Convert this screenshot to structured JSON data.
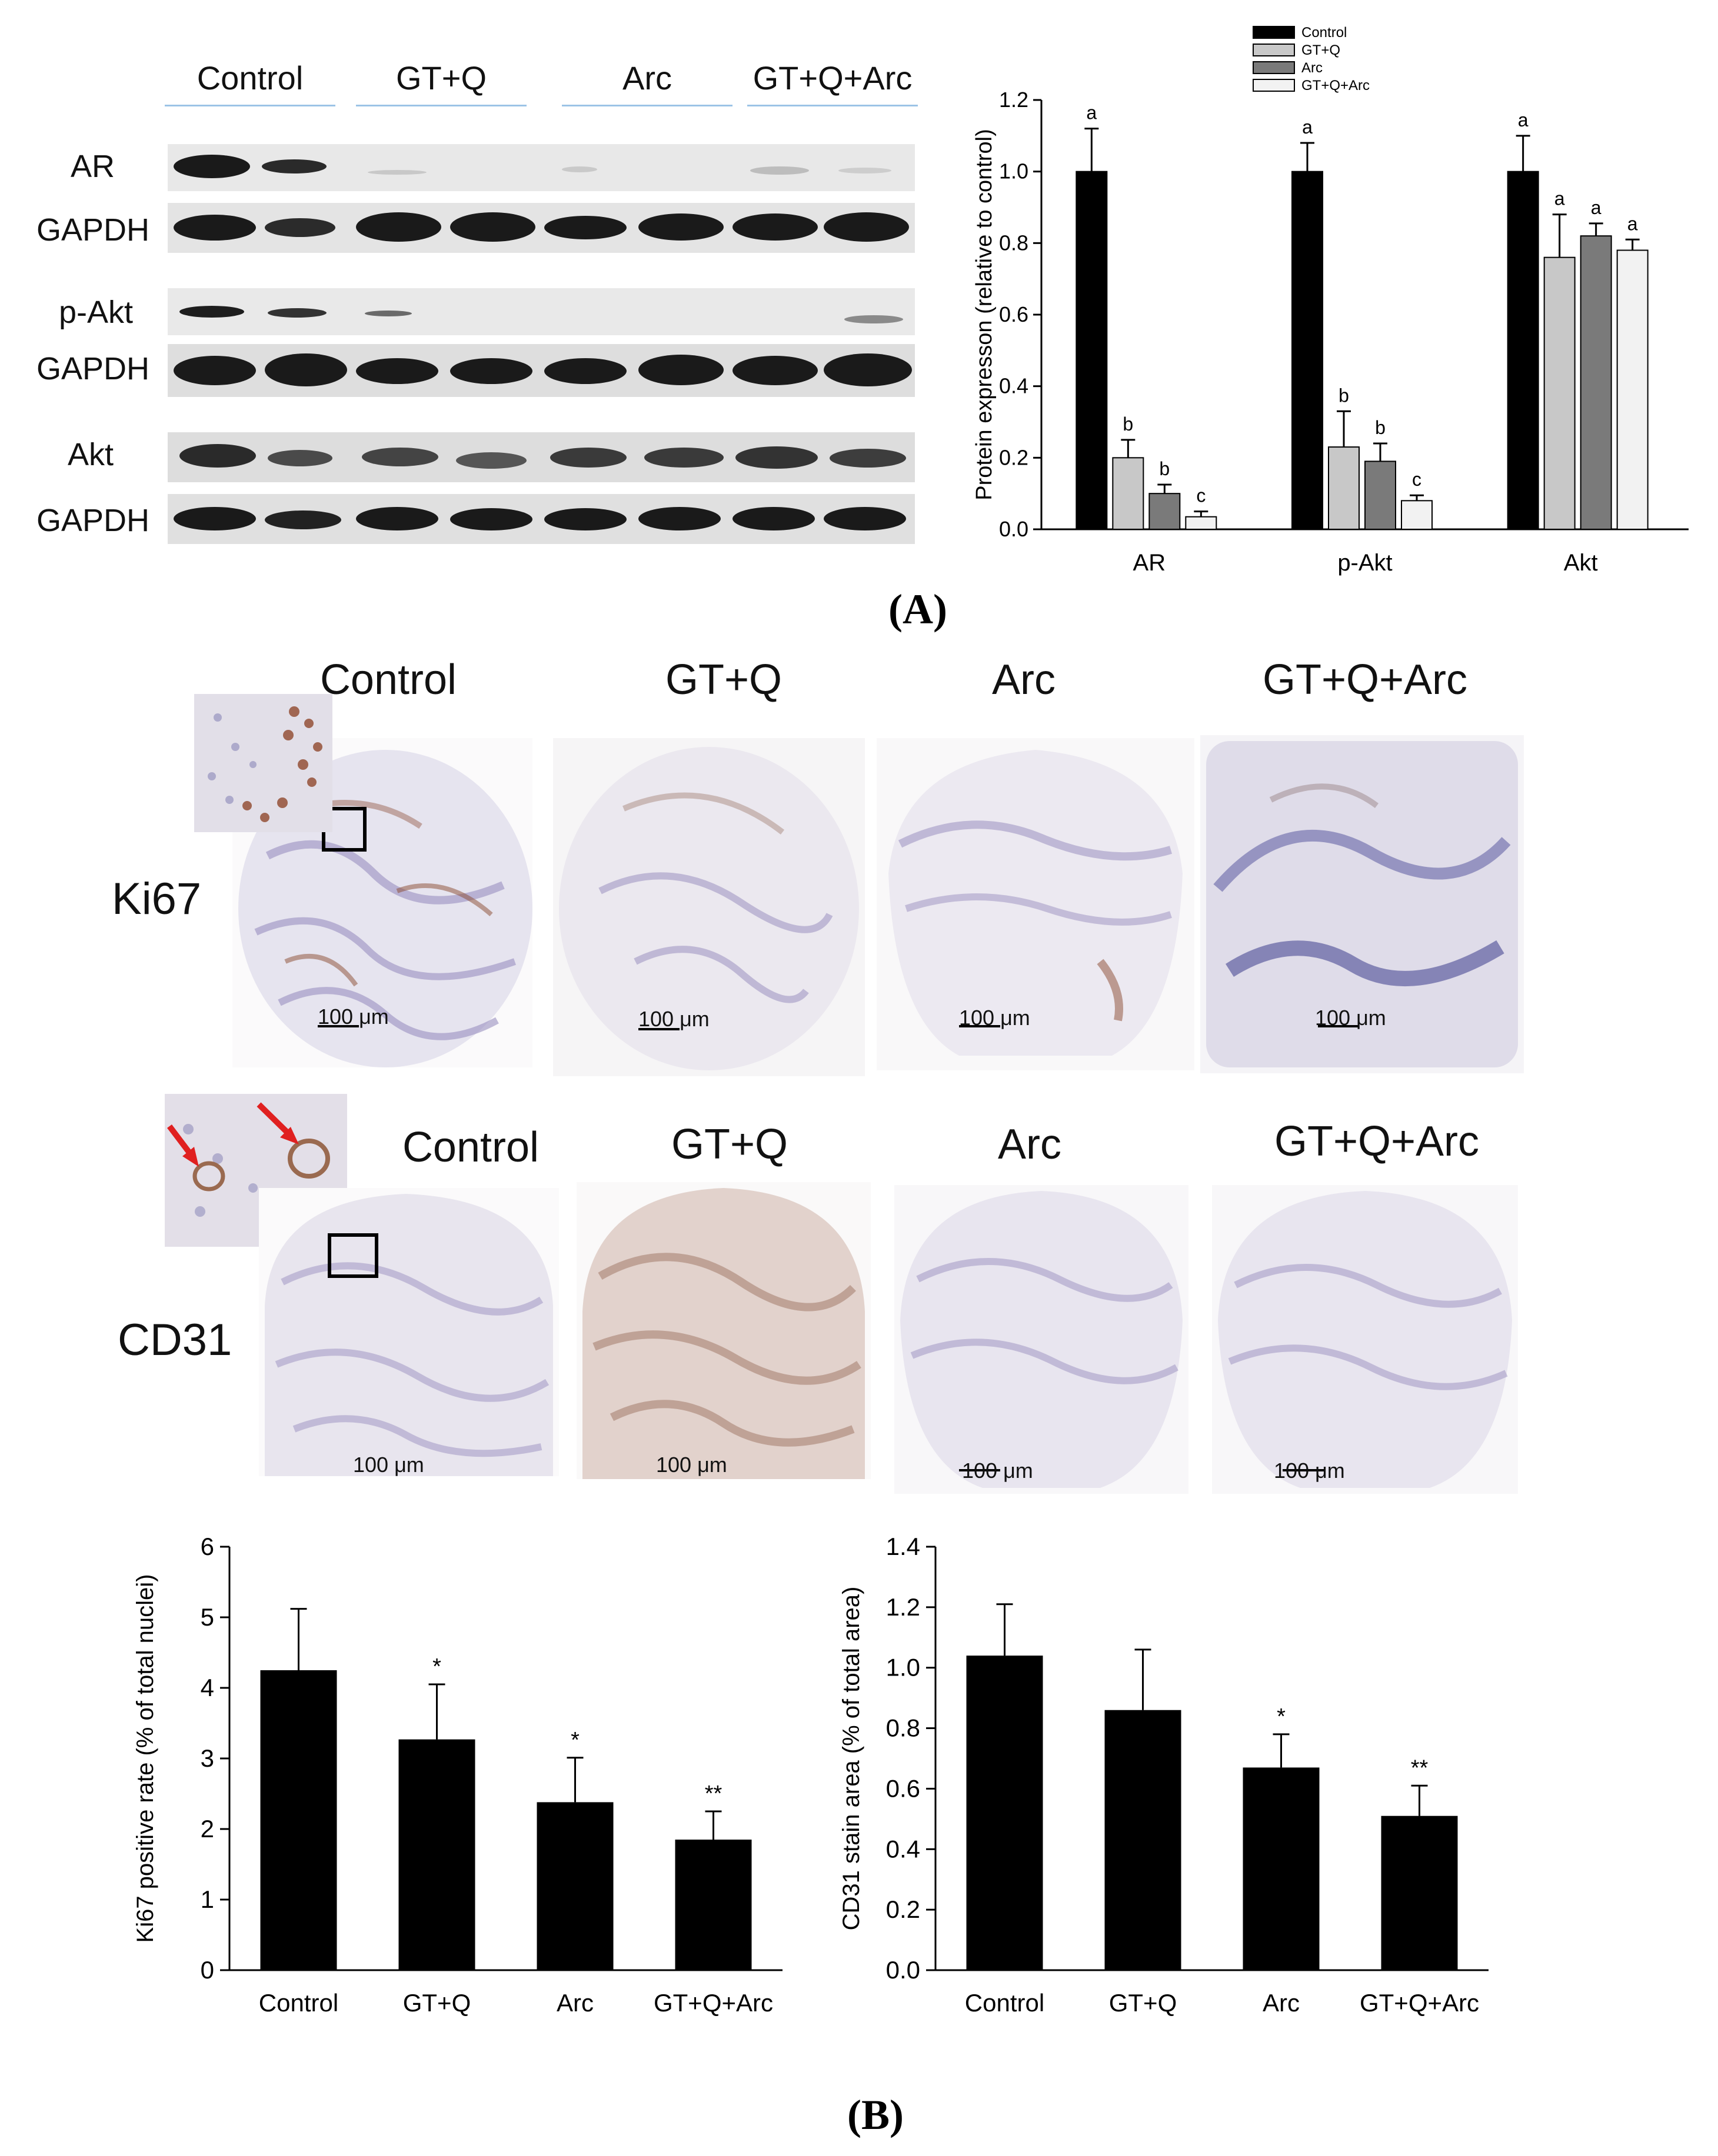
{
  "panel_a": {
    "letter": "(A)",
    "blot": {
      "groups": [
        "Control",
        "GT+Q",
        "Arc",
        "GT+Q+Arc"
      ],
      "rows": [
        "AR",
        "GAPDH",
        "p-Akt",
        "GAPDH",
        "Akt",
        "GAPDH"
      ]
    }
  },
  "panel_b": {
    "letter": "(B)",
    "ihc": {
      "columns": [
        "Control",
        "GT+Q",
        "Arc",
        "GT+Q+Arc"
      ],
      "row_ki67": "Ki67",
      "row_cd31": "CD31",
      "scale_bar": "100 μm"
    }
  },
  "colors": {
    "control": "#000000",
    "gtq": "#c8c8c8",
    "arc": "#7a7a7a",
    "gtqarc": "#f2f2f2",
    "accent_line": "#9cc3e6",
    "arrow": "#e02020"
  },
  "chart_data": [
    {
      "type": "bar",
      "categories": [
        "AR",
        "p-Akt",
        "Akt"
      ],
      "series": [
        {
          "name": "Control",
          "values": [
            1.0,
            1.0,
            1.0
          ],
          "errors": [
            0.12,
            0.08,
            0.1
          ],
          "letters": [
            "a",
            "a",
            "a"
          ]
        },
        {
          "name": "GT+Q",
          "values": [
            0.2,
            0.23,
            0.76
          ],
          "errors": [
            0.05,
            0.1,
            0.12
          ],
          "letters": [
            "b",
            "b",
            "a"
          ]
        },
        {
          "name": "Arc",
          "values": [
            0.1,
            0.19,
            0.82
          ],
          "errors": [
            0.025,
            0.05,
            0.035
          ],
          "letters": [
            "b",
            "b",
            "a"
          ]
        },
        {
          "name": "GT+Q+Arc",
          "values": [
            0.035,
            0.08,
            0.78
          ],
          "errors": [
            0.015,
            0.015,
            0.03
          ],
          "letters": [
            "c",
            "c",
            "a"
          ]
        }
      ],
      "ylabel": "Protein expresson (relative to control)",
      "xlabel": "",
      "ylim": [
        0,
        1.2
      ],
      "yticks": [
        "0.0",
        "0.2",
        "0.4",
        "0.6",
        "0.8",
        "1.0",
        "1.2"
      ],
      "legend": "top-left"
    },
    {
      "type": "bar",
      "categories": [
        "Control",
        "GT+Q",
        "Arc",
        "GT+Q+Arc"
      ],
      "values": [
        4.25,
        3.27,
        2.38,
        1.85
      ],
      "errors": [
        0.87,
        0.78,
        0.63,
        0.4
      ],
      "significance": [
        "",
        "*",
        "*",
        "**"
      ],
      "ylabel": "Ki67 positive rate (% of total nuclei)",
      "xlabel": "",
      "ylim": [
        0,
        6
      ],
      "yticks": [
        "0",
        "1",
        "2",
        "3",
        "4",
        "5",
        "6"
      ]
    },
    {
      "type": "bar",
      "categories": [
        "Control",
        "GT+Q",
        "Arc",
        "GT+Q+Arc"
      ],
      "values": [
        1.04,
        0.86,
        0.67,
        0.51
      ],
      "errors": [
        0.17,
        0.2,
        0.11,
        0.1
      ],
      "significance": [
        "",
        "",
        "*",
        "**"
      ],
      "ylabel": "CD31 stain area (% of total area)",
      "xlabel": "",
      "ylim": [
        0,
        1.4
      ],
      "yticks": [
        "0.0",
        "0.2",
        "0.4",
        "0.6",
        "0.8",
        "1.0",
        "1.2",
        "1.4"
      ]
    }
  ]
}
